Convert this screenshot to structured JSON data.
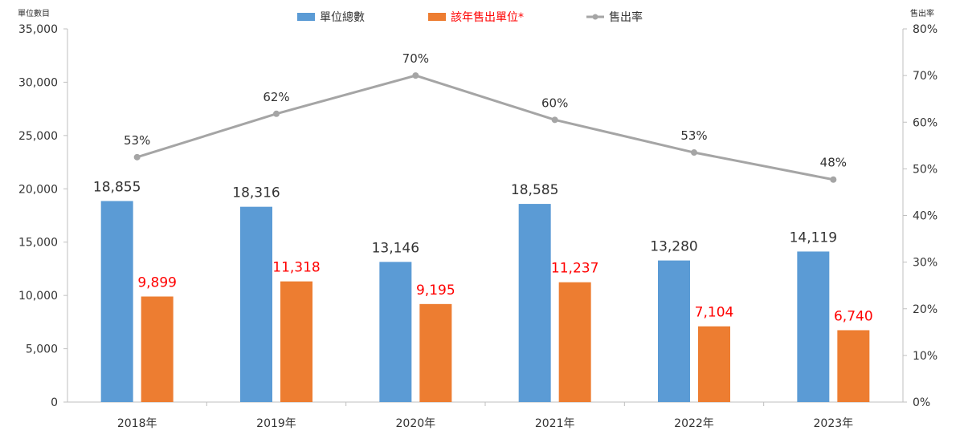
{
  "chart_data": {
    "type": "bar+line",
    "categories": [
      "2018年",
      "2019年",
      "2020年",
      "2021年",
      "2022年",
      "2023年"
    ],
    "series": [
      {
        "name": "單位總數",
        "type": "bar",
        "axis": "left",
        "color": "#5b9bd5",
        "label_color": "#333333",
        "values": [
          18855,
          18316,
          13146,
          18585,
          13280,
          14119
        ],
        "labels": [
          "18,855",
          "18,316",
          "13,146",
          "18,585",
          "13,280",
          "14,119"
        ]
      },
      {
        "name": "該年售出單位*",
        "type": "bar",
        "axis": "left",
        "color": "#ed7d31",
        "label_color": "#ff0000",
        "values": [
          9899,
          11318,
          9195,
          11237,
          7104,
          6740
        ],
        "labels": [
          "9,899",
          "11,318",
          "9,195",
          "11,237",
          "7,104",
          "6,740"
        ]
      },
      {
        "name": "售出率",
        "type": "line",
        "axis": "right",
        "color": "#a5a5a5",
        "label_color": "#333333",
        "values": [
          52.5,
          61.8,
          70.0,
          60.5,
          53.5,
          47.7
        ],
        "labels": [
          "53%",
          "62%",
          "70%",
          "60%",
          "53%",
          "48%"
        ]
      }
    ],
    "y_left": {
      "title": "單位數目",
      "ylim": [
        0,
        35000
      ],
      "ticks": [
        "0",
        "5,000",
        "10,000",
        "15,000",
        "20,000",
        "25,000",
        "30,000",
        "35,000"
      ]
    },
    "y_right": {
      "title": "售出率",
      "ylim": [
        0,
        80
      ],
      "ticks": [
        "0%",
        "10%",
        "20%",
        "30%",
        "40%",
        "50%",
        "60%",
        "70%",
        "80%"
      ]
    },
    "grid": false,
    "legend_position": "top-center",
    "axis_color": "#bfbfbf"
  }
}
